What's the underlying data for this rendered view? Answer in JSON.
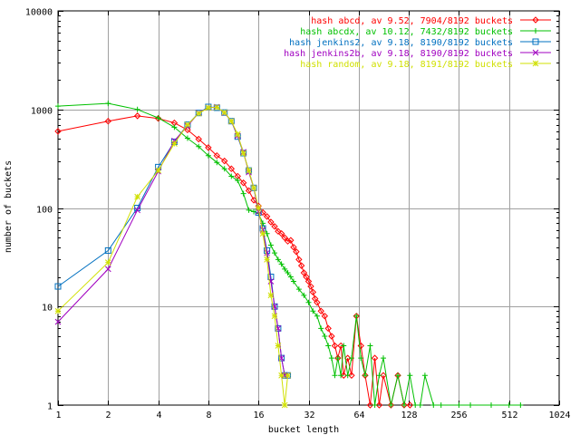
{
  "chart_data": {
    "type": "line",
    "xlabel": "bucket length",
    "ylabel": "number of buckets",
    "x_scale": "log2",
    "y_scale": "log10",
    "xlim": [
      1,
      1024
    ],
    "ylim": [
      1,
      10000
    ],
    "x_ticks": [
      "1",
      "2",
      "4",
      "8",
      "16",
      "32",
      "64",
      "128",
      "256",
      "512",
      "1024"
    ],
    "y_ticks": [
      "1",
      "10",
      "100",
      "1000",
      "10000"
    ],
    "grid": true,
    "legend_position": "top-right",
    "series": [
      {
        "name": "hash abcd, av 9.52, 7904/8192 buckets",
        "color": "#ff0000",
        "marker": "diamond",
        "points": [
          [
            1,
            600
          ],
          [
            2,
            760
          ],
          [
            3,
            860
          ],
          [
            4,
            810
          ],
          [
            5,
            730
          ],
          [
            6,
            620
          ],
          [
            7,
            500
          ],
          [
            8,
            410
          ],
          [
            9,
            340
          ],
          [
            10,
            300
          ],
          [
            11,
            250
          ],
          [
            12,
            210
          ],
          [
            13,
            180
          ],
          [
            14,
            150
          ],
          [
            15,
            120
          ],
          [
            16,
            105
          ],
          [
            17,
            90
          ],
          [
            18,
            82
          ],
          [
            19,
            72
          ],
          [
            20,
            65
          ],
          [
            21,
            58
          ],
          [
            22,
            55
          ],
          [
            23,
            50
          ],
          [
            24,
            46
          ],
          [
            25,
            47
          ],
          [
            26,
            40
          ],
          [
            27,
            36
          ],
          [
            28,
            30
          ],
          [
            29,
            26
          ],
          [
            30,
            22
          ],
          [
            31,
            20
          ],
          [
            32,
            18
          ],
          [
            33,
            16
          ],
          [
            34,
            14
          ],
          [
            35,
            12
          ],
          [
            36,
            11
          ],
          [
            38,
            9
          ],
          [
            40,
            8
          ],
          [
            42,
            6
          ],
          [
            44,
            5
          ],
          [
            46,
            4
          ],
          [
            48,
            3
          ],
          [
            50,
            4
          ],
          [
            52,
            2
          ],
          [
            55,
            3
          ],
          [
            58,
            2
          ],
          [
            62,
            8
          ],
          [
            66,
            4
          ],
          [
            70,
            2
          ],
          [
            75,
            1
          ],
          [
            80,
            3
          ],
          [
            85,
            1
          ],
          [
            90,
            2
          ],
          [
            100,
            1
          ],
          [
            110,
            2
          ],
          [
            120,
            1
          ],
          [
            130,
            1
          ]
        ]
      },
      {
        "name": "hash abcdx, av 10.12, 7432/8192 buckets",
        "color": "#00c000",
        "marker": "plus",
        "points": [
          [
            1,
            1080
          ],
          [
            2,
            1150
          ],
          [
            3,
            1000
          ],
          [
            4,
            820
          ],
          [
            5,
            660
          ],
          [
            6,
            510
          ],
          [
            7,
            420
          ],
          [
            8,
            340
          ],
          [
            9,
            290
          ],
          [
            10,
            250
          ],
          [
            11,
            210
          ],
          [
            12,
            190
          ],
          [
            13,
            140
          ],
          [
            14,
            95
          ],
          [
            15,
            92
          ],
          [
            16,
            88
          ],
          [
            17,
            70
          ],
          [
            18,
            55
          ],
          [
            19,
            42
          ],
          [
            20,
            35
          ],
          [
            21,
            30
          ],
          [
            22,
            27
          ],
          [
            23,
            24
          ],
          [
            24,
            22
          ],
          [
            25,
            20
          ],
          [
            26,
            18
          ],
          [
            28,
            15
          ],
          [
            30,
            13
          ],
          [
            32,
            11
          ],
          [
            34,
            9
          ],
          [
            36,
            8
          ],
          [
            38,
            6
          ],
          [
            40,
            5
          ],
          [
            42,
            4
          ],
          [
            44,
            3
          ],
          [
            46,
            2
          ],
          [
            48,
            3
          ],
          [
            50,
            2
          ],
          [
            52,
            4
          ],
          [
            55,
            2
          ],
          [
            58,
            3
          ],
          [
            62,
            8
          ],
          [
            66,
            3
          ],
          [
            70,
            2
          ],
          [
            75,
            4
          ],
          [
            80,
            1
          ],
          [
            85,
            2
          ],
          [
            90,
            3
          ],
          [
            100,
            1
          ],
          [
            110,
            2
          ],
          [
            120,
            1
          ],
          [
            130,
            2
          ],
          [
            140,
            1
          ],
          [
            150,
            1
          ],
          [
            160,
            2
          ],
          [
            180,
            1
          ],
          [
            200,
            1
          ],
          [
            256,
            1
          ],
          [
            300,
            1
          ],
          [
            400,
            1
          ],
          [
            512,
            1
          ],
          [
            600,
            1
          ]
        ]
      },
      {
        "name": "hash jenkins2, av 9.18, 8190/8192 buckets",
        "color": "#0070c0",
        "marker": "square",
        "points": [
          [
            1,
            16
          ],
          [
            2,
            37
          ],
          [
            3,
            100
          ],
          [
            4,
            260
          ],
          [
            5,
            470
          ],
          [
            6,
            700
          ],
          [
            7,
            920
          ],
          [
            8,
            1060
          ],
          [
            9,
            1040
          ],
          [
            10,
            930
          ],
          [
            11,
            760
          ],
          [
            12,
            530
          ],
          [
            13,
            360
          ],
          [
            14,
            240
          ],
          [
            15,
            160
          ],
          [
            16,
            90
          ],
          [
            17,
            62
          ],
          [
            18,
            37
          ],
          [
            19,
            20
          ],
          [
            20,
            10
          ],
          [
            21,
            6
          ],
          [
            22,
            3
          ],
          [
            23,
            2
          ],
          [
            24,
            2
          ]
        ]
      },
      {
        "name": "hash jenkins2b, av 9.18, 8190/8192 buckets",
        "color": "#a000c0",
        "marker": "x",
        "points": [
          [
            1,
            7
          ],
          [
            2,
            24
          ],
          [
            3,
            95
          ],
          [
            4,
            235
          ],
          [
            5,
            480
          ],
          [
            6,
            680
          ],
          [
            7,
            920
          ],
          [
            8,
            1040
          ],
          [
            9,
            1060
          ],
          [
            10,
            920
          ],
          [
            11,
            760
          ],
          [
            12,
            540
          ],
          [
            13,
            370
          ],
          [
            14,
            230
          ],
          [
            15,
            160
          ],
          [
            16,
            92
          ],
          [
            17,
            60
          ],
          [
            18,
            35
          ],
          [
            19,
            18
          ],
          [
            20,
            10
          ],
          [
            21,
            6
          ],
          [
            22,
            3
          ],
          [
            23,
            2
          ],
          [
            24,
            2
          ]
        ]
      },
      {
        "name": "hash random, av 9.18, 8191/8192 buckets",
        "color": "#d0e000",
        "marker": "star",
        "points": [
          [
            1,
            9
          ],
          [
            2,
            28
          ],
          [
            3,
            130
          ],
          [
            4,
            240
          ],
          [
            5,
            450
          ],
          [
            6,
            700
          ],
          [
            7,
            910
          ],
          [
            8,
            1040
          ],
          [
            9,
            1050
          ],
          [
            10,
            930
          ],
          [
            11,
            760
          ],
          [
            12,
            560
          ],
          [
            13,
            360
          ],
          [
            14,
            240
          ],
          [
            15,
            160
          ],
          [
            16,
            100
          ],
          [
            17,
            55
          ],
          [
            18,
            30
          ],
          [
            19,
            13
          ],
          [
            20,
            8
          ],
          [
            21,
            4
          ],
          [
            22,
            2
          ],
          [
            23,
            1
          ],
          [
            24,
            2
          ]
        ]
      }
    ]
  }
}
